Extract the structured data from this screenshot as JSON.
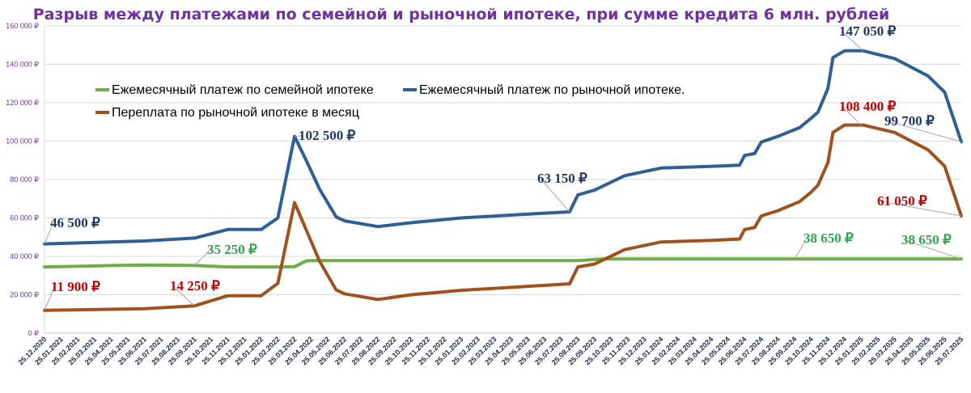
{
  "chart_data": {
    "type": "line",
    "title": "Разрыв между платежами по семейной и рыночной ипотеке, при сумме кредита  6 млн. рублей",
    "xlabel": "",
    "ylabel": "",
    "ylim": [
      0,
      160000
    ],
    "grid": true,
    "legend_position": "top-left",
    "y_ticks": [
      {
        "value": 0,
        "label": "0 ₽"
      },
      {
        "value": 20000,
        "label": "20 000 ₽"
      },
      {
        "value": 40000,
        "label": "40 000 ₽"
      },
      {
        "value": 60000,
        "label": "60 000 ₽"
      },
      {
        "value": 80000,
        "label": "80 000 ₽"
      },
      {
        "value": 100000,
        "label": "100 000 ₽"
      },
      {
        "value": 120000,
        "label": "120 000 ₽"
      },
      {
        "value": 140000,
        "label": "140 000 ₽"
      },
      {
        "value": 160000,
        "label": "160 000 ₽"
      }
    ],
    "categories": [
      "25.12.2020",
      "25.01.2021",
      "25.02.2021",
      "25.03.2021",
      "25.04.2021",
      "25.05.2021",
      "25.06.2021",
      "25.07.2021",
      "25.08.2021",
      "25.09.2021",
      "25.10.2021",
      "25.11.2021",
      "25.12.2021",
      "25.01.2022",
      "25.02.2022",
      "25.03.2022",
      "25.04.2022",
      "25.05.2022",
      "25.06.2022",
      "25.07.2022",
      "25.08.2022",
      "25.09.2022",
      "25.10.2022",
      "25.11.2022",
      "25.12.2022",
      "25.01.2023",
      "25.02.2023",
      "25.03.2023",
      "25.04.2023",
      "25.05.2023",
      "25.06.2023",
      "25.07.2023",
      "25.08.2023",
      "25.09.2023",
      "25.10.2023",
      "25.11.2023",
      "25.12.2023",
      "25.01.2024",
      "25.02.2024",
      "25.03.2024",
      "25.04.2024",
      "25.05.2024",
      "25.06.2024",
      "25.07.2024",
      "25.08.2024",
      "25.09.2024",
      "25.10.2024",
      "25.11.2024",
      "25.12.2024",
      "25.01.2025",
      "25.02.2025",
      "25.03.2025",
      "25.04.2025",
      "25.05.2025",
      "25.06.2025",
      "25.07.2025"
    ],
    "series": [
      {
        "name": "Ежемесячный платеж по семейной ипотеке",
        "color": "#70ad47",
        "points": [
          [
            0,
            34500
          ],
          [
            4,
            35200
          ],
          [
            6,
            35500
          ],
          [
            9,
            35250
          ],
          [
            11,
            34500
          ],
          [
            14,
            34500
          ],
          [
            15,
            34600
          ],
          [
            15.7,
            37600
          ],
          [
            16,
            37800
          ],
          [
            32,
            37800
          ],
          [
            33.5,
            38650
          ],
          [
            55,
            38650
          ]
        ]
      },
      {
        "name": "Ежемесячный платеж по рыночной ипотеке.",
        "color": "#2e6096",
        "points": [
          [
            0,
            46500
          ],
          [
            6,
            48000
          ],
          [
            9,
            49500
          ],
          [
            11,
            54000
          ],
          [
            13,
            54000
          ],
          [
            14,
            60000
          ],
          [
            15,
            102500
          ],
          [
            15.7,
            90000
          ],
          [
            16.5,
            75000
          ],
          [
            17.5,
            60500
          ],
          [
            18,
            58500
          ],
          [
            20,
            55500
          ],
          [
            22,
            57500
          ],
          [
            25,
            60000
          ],
          [
            30,
            62500
          ],
          [
            31.5,
            63150
          ],
          [
            32,
            72000
          ],
          [
            33,
            74500
          ],
          [
            34.8,
            82000
          ],
          [
            37,
            86000
          ],
          [
            40,
            86800
          ],
          [
            41.7,
            87500
          ],
          [
            42,
            92500
          ],
          [
            42.6,
            93500
          ],
          [
            43,
            99500
          ],
          [
            44,
            102500
          ],
          [
            45.3,
            107000
          ],
          [
            46,
            112000
          ],
          [
            46.4,
            115000
          ],
          [
            47,
            127500
          ],
          [
            47.3,
            143500
          ],
          [
            48,
            147050
          ],
          [
            49.1,
            147050
          ],
          [
            51,
            143000
          ],
          [
            53,
            134000
          ],
          [
            54,
            125500
          ],
          [
            55,
            99700
          ]
        ]
      },
      {
        "name": "Переплата по рыночной ипотеке  в месяц",
        "color": "#a0521e",
        "points": [
          [
            0,
            11900
          ],
          [
            6,
            12700
          ],
          [
            9,
            14250
          ],
          [
            11,
            19500
          ],
          [
            13,
            19500
          ],
          [
            14,
            26000
          ],
          [
            15,
            68000
          ],
          [
            16.5,
            37500
          ],
          [
            17.5,
            22500
          ],
          [
            18,
            20500
          ],
          [
            20,
            17500
          ],
          [
            22,
            20000
          ],
          [
            25,
            22300
          ],
          [
            30,
            24900
          ],
          [
            31.5,
            25700
          ],
          [
            32,
            34500
          ],
          [
            33,
            36000
          ],
          [
            34.8,
            43500
          ],
          [
            37,
            47500
          ],
          [
            40,
            48300
          ],
          [
            41.7,
            49000
          ],
          [
            42,
            54000
          ],
          [
            42.6,
            55000
          ],
          [
            43,
            61000
          ],
          [
            44,
            63800
          ],
          [
            45.3,
            68500
          ],
          [
            46,
            73500
          ],
          [
            46.4,
            77000
          ],
          [
            47,
            88800
          ],
          [
            47.3,
            104500
          ],
          [
            48,
            108400
          ],
          [
            49.1,
            108400
          ],
          [
            51,
            104500
          ],
          [
            53,
            95500
          ],
          [
            54,
            87000
          ],
          [
            55,
            61050
          ]
        ]
      }
    ],
    "annotations": [
      {
        "text": "46 500 ₽",
        "color": "#1f3864",
        "at": [
          0,
          46500
        ]
      },
      {
        "text": "102 500 ₽",
        "color": "#1f3864",
        "at": [
          15,
          102500
        ]
      },
      {
        "text": "63 150 ₽",
        "color": "#1f3864",
        "at": [
          31.5,
          63150
        ]
      },
      {
        "text": "147 050 ₽",
        "color": "#1f3864",
        "at": [
          49.1,
          147050
        ]
      },
      {
        "text": "99 700 ₽",
        "color": "#1f3864",
        "at": [
          55,
          99700
        ]
      },
      {
        "text": "35 250 ₽",
        "color": "#2ea44f",
        "at": [
          9,
          35250
        ]
      },
      {
        "text": "38 650 ₽",
        "color": "#2ea44f",
        "at": [
          45,
          38650
        ]
      },
      {
        "text": "38 650 ₽",
        "color": "#2ea44f",
        "at": [
          55,
          38650
        ]
      },
      {
        "text": "11 900 ₽",
        "color": "#c00000",
        "at": [
          0,
          11900
        ]
      },
      {
        "text": "14 250 ₽",
        "color": "#c00000",
        "at": [
          9,
          14250
        ]
      },
      {
        "text": "108 400 ₽",
        "color": "#c00000",
        "at": [
          49,
          108400
        ]
      },
      {
        "text": "61 050 ₽",
        "color": "#c00000",
        "at": [
          55,
          61050
        ]
      }
    ]
  }
}
